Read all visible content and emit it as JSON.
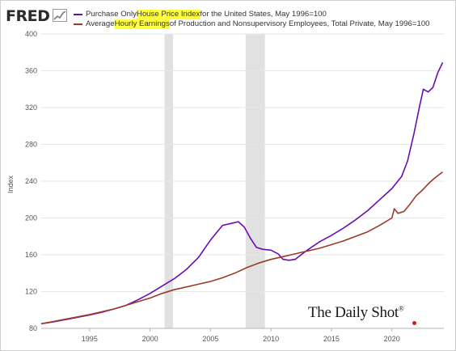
{
  "brand": {
    "logo_text": "FRED",
    "logo_mark": "fred-chart-mark-icon"
  },
  "legend": [
    {
      "pre": "Purchase Only ",
      "hl": "House Price Index",
      "post": " for the United States, May 1996=100",
      "color": "#6a0dad"
    },
    {
      "pre": "Average ",
      "hl": "Hourly Earnings",
      "post": " of Production and Nonsupervisory Employees, Total Private, May 1996=100",
      "color": "#9b3a2a"
    }
  ],
  "watermark": {
    "text": "The Daily Shot",
    "mark": "®"
  },
  "chart_data": {
    "type": "line",
    "title": "",
    "xlabel": "",
    "ylabel": "Index",
    "xlim": [
      1991,
      2024.3
    ],
    "ylim": [
      80,
      400
    ],
    "x_ticks": [
      1995,
      2000,
      2005,
      2010,
      2015,
      2020
    ],
    "y_ticks": [
      80,
      120,
      160,
      200,
      240,
      280,
      320,
      360,
      400
    ],
    "grid": "horizontal",
    "recessions": [
      [
        2001.2,
        2001.9
      ],
      [
        2007.9,
        2009.5
      ]
    ],
    "series": [
      {
        "name": "Purchase Only House Price Index for the United States, May 1996=100",
        "color": "#6a0dad",
        "points": [
          [
            1991.0,
            85
          ],
          [
            1992.0,
            87
          ],
          [
            1993.0,
            89.5
          ],
          [
            1994.0,
            92
          ],
          [
            1995.0,
            94.5
          ],
          [
            1996.0,
            97.5
          ],
          [
            1997.0,
            101
          ],
          [
            1998.0,
            105
          ],
          [
            1999.0,
            111
          ],
          [
            2000.0,
            118
          ],
          [
            2001.0,
            126
          ],
          [
            2002.0,
            134
          ],
          [
            2003.0,
            144
          ],
          [
            2004.0,
            157
          ],
          [
            2005.0,
            176
          ],
          [
            2006.0,
            192
          ],
          [
            2006.7,
            194
          ],
          [
            2007.3,
            196
          ],
          [
            2007.8,
            190
          ],
          [
            2008.3,
            178
          ],
          [
            2008.8,
            168
          ],
          [
            2009.3,
            166
          ],
          [
            2010.0,
            165
          ],
          [
            2010.6,
            161
          ],
          [
            2011.0,
            155
          ],
          [
            2011.5,
            154
          ],
          [
            2012.0,
            155
          ],
          [
            2012.5,
            160
          ],
          [
            2013.0,
            165
          ],
          [
            2014.0,
            174
          ],
          [
            2015.0,
            181
          ],
          [
            2016.0,
            189
          ],
          [
            2017.0,
            198
          ],
          [
            2018.0,
            208
          ],
          [
            2019.0,
            220
          ],
          [
            2020.0,
            232
          ],
          [
            2020.8,
            245
          ],
          [
            2021.3,
            262
          ],
          [
            2021.8,
            290
          ],
          [
            2022.3,
            322
          ],
          [
            2022.6,
            340
          ],
          [
            2023.0,
            337
          ],
          [
            2023.4,
            342
          ],
          [
            2023.8,
            358
          ],
          [
            2024.2,
            369
          ]
        ]
      },
      {
        "name": "Average Hourly Earnings of Production and Nonsupervisory Employees, Total Private, May 1996=100",
        "color": "#9b3a2a",
        "points": [
          [
            1991.0,
            85
          ],
          [
            1992.0,
            87.5
          ],
          [
            1993.0,
            90
          ],
          [
            1994.0,
            92.5
          ],
          [
            1995.0,
            95
          ],
          [
            1996.0,
            98
          ],
          [
            1997.0,
            101
          ],
          [
            1998.0,
            105
          ],
          [
            1999.0,
            109
          ],
          [
            2000.0,
            113
          ],
          [
            2001.0,
            118
          ],
          [
            2002.0,
            122
          ],
          [
            2003.0,
            125
          ],
          [
            2004.0,
            128
          ],
          [
            2005.0,
            131
          ],
          [
            2006.0,
            135
          ],
          [
            2007.0,
            140
          ],
          [
            2008.0,
            146
          ],
          [
            2009.0,
            151
          ],
          [
            2010.0,
            155
          ],
          [
            2011.0,
            158
          ],
          [
            2012.0,
            161
          ],
          [
            2013.0,
            164
          ],
          [
            2014.0,
            167
          ],
          [
            2015.0,
            171
          ],
          [
            2016.0,
            175
          ],
          [
            2017.0,
            180
          ],
          [
            2018.0,
            185
          ],
          [
            2019.0,
            192
          ],
          [
            2020.0,
            200
          ],
          [
            2020.2,
            210
          ],
          [
            2020.5,
            205
          ],
          [
            2021.0,
            207
          ],
          [
            2021.5,
            215
          ],
          [
            2022.0,
            224
          ],
          [
            2022.5,
            230
          ],
          [
            2023.0,
            237
          ],
          [
            2023.5,
            243
          ],
          [
            2024.2,
            250
          ]
        ]
      }
    ]
  }
}
